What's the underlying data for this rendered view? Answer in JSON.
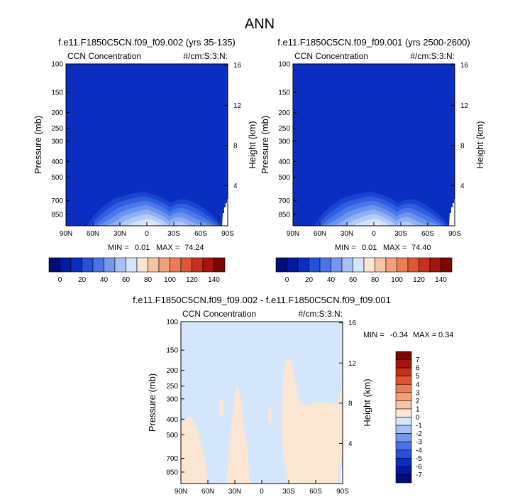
{
  "figure": {
    "title": "ANN"
  },
  "colors": {
    "background_blue": "#0a2ec0",
    "diff_background": "#d4e6fb",
    "diff_positive": "#fbe6d3",
    "white": "#ffffff",
    "zonal_bands": [
      "#1943d2",
      "#2f5ee0",
      "#4a78ea",
      "#6b94f0",
      "#8fb0f4",
      "#b3cbf7",
      "#d5e3fa",
      "#eef3fc"
    ],
    "colorbar_palette": [
      "#000d78",
      "#001ba0",
      "#0a2ec0",
      "#2650d8",
      "#4a73e8",
      "#7497ee",
      "#a7c1f4",
      "#d4e6fb",
      "#fbe6d3",
      "#f6c3a3",
      "#f1a07a",
      "#ec7c55",
      "#e05632",
      "#c8301d",
      "#a5150c",
      "#7c0600"
    ]
  },
  "chart_data": [
    {
      "type": "heatmap",
      "title": "f.e11.F1850C5CN.f09_f09.002 (yrs 35-135)",
      "left_string": "CCN Concentration",
      "right_string": "#/cm:S:3:N:",
      "ylabel": "Pressure (mb)",
      "ylabel_right": "Height (km)",
      "x_ticks": [
        "90N",
        "60N",
        "30N",
        "0",
        "30S",
        "60S",
        "90S"
      ],
      "y_ticks": [
        "100",
        "150",
        "200",
        "250",
        "300",
        "400",
        "500",
        "700",
        "850"
      ],
      "y_values": [
        100,
        150,
        200,
        250,
        300,
        400,
        500,
        700,
        850
      ],
      "y_ticks_right": [
        "16",
        "12",
        "8",
        "4"
      ],
      "y_values_right_km": [
        16,
        12,
        8,
        4
      ],
      "ylim": [
        100,
        1000
      ],
      "y_scale": "log",
      "min": "0.01",
      "max": "74.24",
      "min_label": "MIN =",
      "max_label": "MAX =",
      "contour_levels": [
        0,
        10,
        20,
        30,
        40,
        50,
        60,
        70,
        80,
        90,
        100,
        110,
        120,
        130,
        140
      ]
    },
    {
      "type": "heatmap",
      "title": "f.e11.F1850C5CN.f09_f09.001 (yrs 2500-2600)",
      "left_string": "CCN Concentration",
      "right_string": "#/cm:S:3:N:",
      "ylabel": "Pressure (mb)",
      "ylabel_right": "Height (km)",
      "x_ticks": [
        "90N",
        "60N",
        "30N",
        "0",
        "30S",
        "60S",
        "90S"
      ],
      "y_ticks": [
        "100",
        "150",
        "200",
        "250",
        "300",
        "400",
        "500",
        "700",
        "850"
      ],
      "y_values": [
        100,
        150,
        200,
        250,
        300,
        400,
        500,
        700,
        850
      ],
      "y_ticks_right": [
        "16",
        "12",
        "8",
        "4"
      ],
      "y_values_right_km": [
        16,
        12,
        8,
        4
      ],
      "ylim": [
        100,
        1000
      ],
      "y_scale": "log",
      "min": "0.01",
      "max": "74.40",
      "min_label": "MIN =",
      "max_label": "MAX =",
      "contour_levels": [
        0,
        10,
        20,
        30,
        40,
        50,
        60,
        70,
        80,
        90,
        100,
        110,
        120,
        130,
        140
      ]
    },
    {
      "type": "heatmap",
      "title": "f.e11.F1850C5CN.f09_f09.002 - f.e11.F1850C5CN.f09_f09.001",
      "left_string": "CCN Concentration",
      "right_string": "#/cm:S:3:N:",
      "ylabel": "Pressure (mb)",
      "ylabel_right": "Height (km)",
      "x_ticks": [
        "90N",
        "60N",
        "30N",
        "0",
        "30S",
        "60S",
        "90S"
      ],
      "y_ticks": [
        "100",
        "150",
        "200",
        "250",
        "300",
        "400",
        "500",
        "700",
        "850"
      ],
      "y_values": [
        100,
        150,
        200,
        250,
        300,
        400,
        500,
        700,
        850
      ],
      "y_ticks_right": [
        "16",
        "12",
        "8",
        "4"
      ],
      "y_values_right_km": [
        16,
        12,
        8,
        4
      ],
      "ylim": [
        100,
        1000
      ],
      "y_scale": "log",
      "min": "-0.34",
      "max": "0.34",
      "min_label": "MIN =",
      "max_label": "MAX =",
      "contour_levels": [
        -7,
        -6,
        -5,
        -4,
        -3,
        -2,
        -1,
        0,
        1,
        2,
        3,
        4,
        5,
        6,
        7
      ]
    }
  ],
  "colorbar_top": {
    "orientation": "horizontal",
    "labels": [
      "0",
      "20",
      "40",
      "60",
      "80",
      "100",
      "120",
      "140"
    ]
  },
  "colorbar_bottom": {
    "orientation": "vertical",
    "labels": [
      "7",
      "6",
      "5",
      "4",
      "3",
      "2",
      "1",
      "0",
      "-1",
      "-2",
      "-3",
      "-4",
      "-5",
      "-6",
      "-7"
    ]
  }
}
